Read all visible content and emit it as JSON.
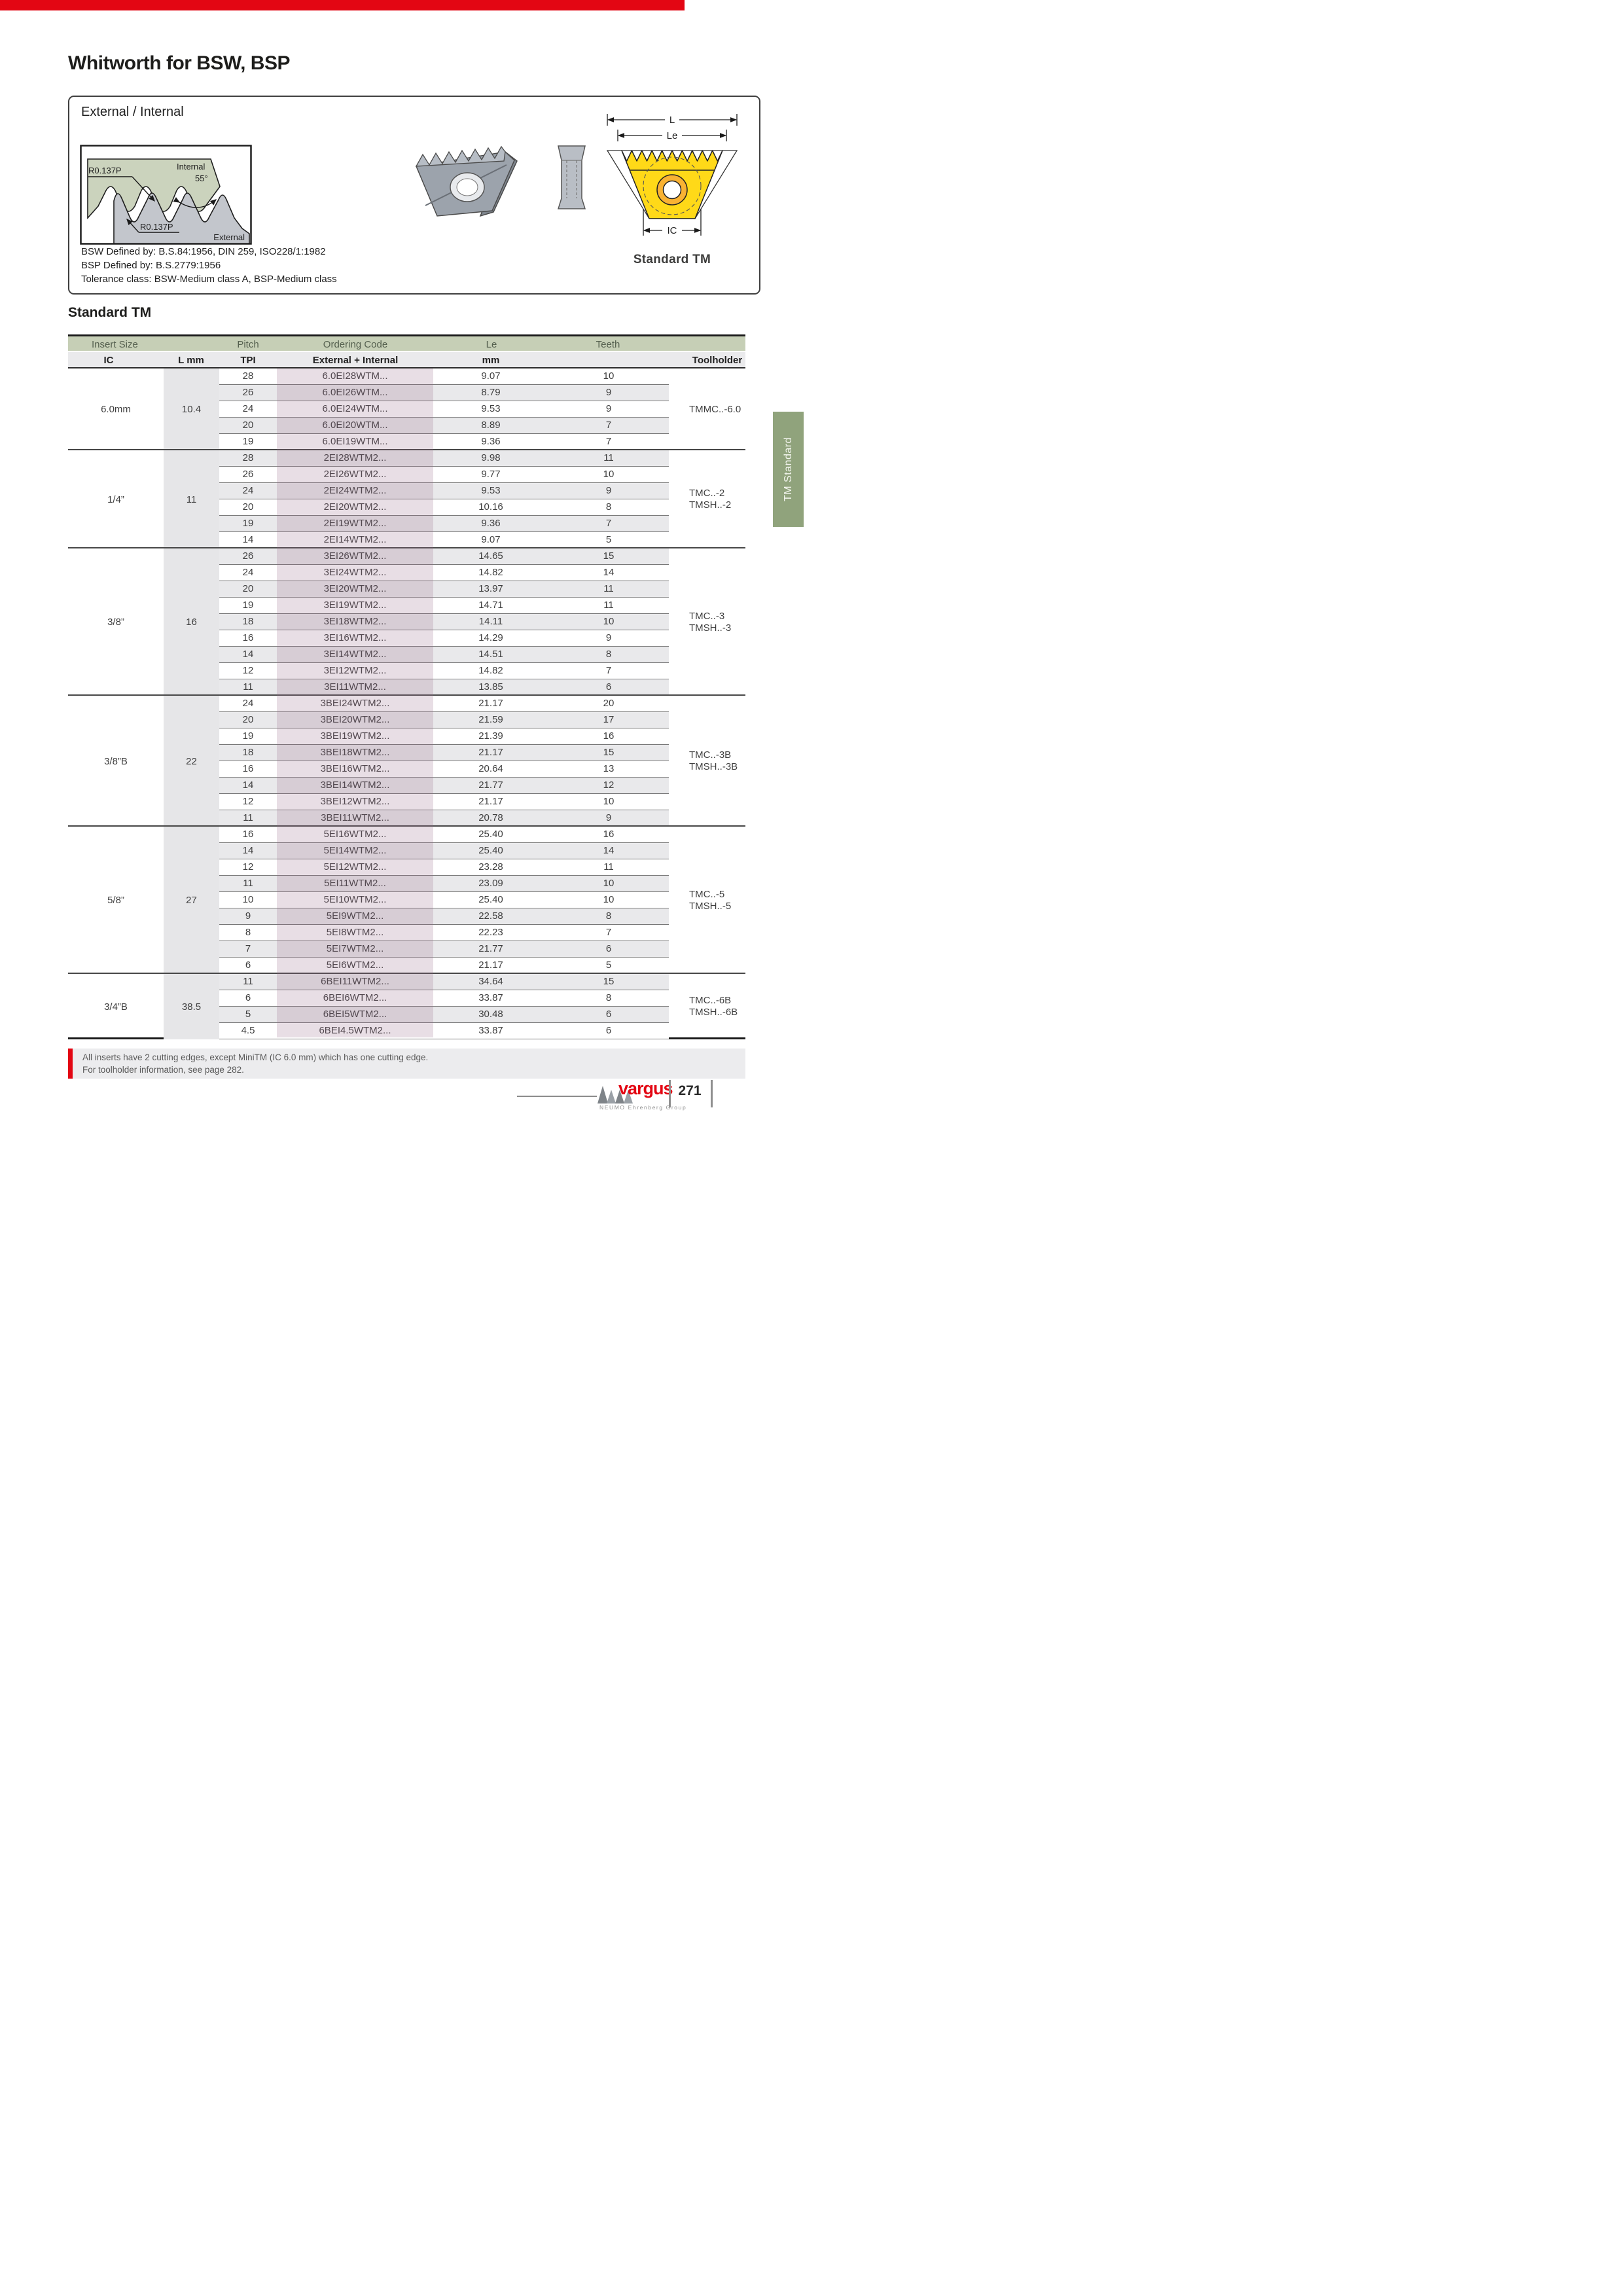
{
  "page": {
    "title": "Whitworth for BSW, BSP",
    "section_heading": "Standard TM",
    "tab_label": "TM Standard",
    "accent_red": "#E30613",
    "header_sage": "#C6CFB6",
    "tab_green": "#90A37C",
    "code_column_mauve": "#CBB8C7"
  },
  "info_box": {
    "subtitle": "External / Internal",
    "thread_diagram": {
      "radius_top_label": "R0.137P",
      "internal_label": "Internal",
      "angle_label": "55°",
      "radius_bottom_label": "R0.137P",
      "external_label": "External"
    },
    "defined_lines": [
      "BSW Defined by: B.S.84:1956, DIN 259, ISO228/1:1982",
      "BSP Defined by: B.S.2779:1956",
      "Tolerance class: BSW-Medium class A, BSP-Medium class"
    ],
    "insert_diagram": {
      "dim_l": "L",
      "dim_le": "Le",
      "dim_ic": "IC",
      "caption": "Standard TM"
    }
  },
  "table": {
    "header_row1": {
      "insert_size": "Insert Size",
      "pitch": "Pitch",
      "ordering_code": "Ordering Code",
      "le": "Le",
      "teeth": "Teeth"
    },
    "header_row2": {
      "ic": "IC",
      "l_mm": "L mm",
      "tpi": "TPI",
      "ext_int": "External + Internal",
      "mm": "mm",
      "toolholder": "Toolholder"
    },
    "groups": [
      {
        "ic": "6.0mm",
        "l": "10.4",
        "toolholders": [
          "TMMC..-6.0"
        ],
        "rows": [
          [
            "28",
            "6.0EI28WTM...",
            "9.07",
            "10"
          ],
          [
            "26",
            "6.0EI26WTM...",
            "8.79",
            "9"
          ],
          [
            "24",
            "6.0EI24WTM...",
            "9.53",
            "9"
          ],
          [
            "20",
            "6.0EI20WTM...",
            "8.89",
            "7"
          ],
          [
            "19",
            "6.0EI19WTM...",
            "9.36",
            "7"
          ]
        ]
      },
      {
        "ic": "1/4”",
        "l": "11",
        "toolholders": [
          "TMC..-2",
          "TMSH..-2"
        ],
        "rows": [
          [
            "28",
            "2EI28WTM2...",
            "9.98",
            "11"
          ],
          [
            "26",
            "2EI26WTM2...",
            "9.77",
            "10"
          ],
          [
            "24",
            "2EI24WTM2...",
            "9.53",
            "9"
          ],
          [
            "20",
            "2EI20WTM2...",
            "10.16",
            "8"
          ],
          [
            "19",
            "2EI19WTM2...",
            "9.36",
            "7"
          ],
          [
            "14",
            "2EI14WTM2...",
            "9.07",
            "5"
          ]
        ]
      },
      {
        "ic": "3/8”",
        "l": "16",
        "toolholders": [
          "TMC..-3",
          "TMSH..-3"
        ],
        "rows": [
          [
            "26",
            "3EI26WTM2...",
            "14.65",
            "15"
          ],
          [
            "24",
            "3EI24WTM2...",
            "14.82",
            "14"
          ],
          [
            "20",
            "3EI20WTM2...",
            "13.97",
            "11"
          ],
          [
            "19",
            "3EI19WTM2...",
            "14.71",
            "11"
          ],
          [
            "18",
            "3EI18WTM2...",
            "14.11",
            "10"
          ],
          [
            "16",
            "3EI16WTM2...",
            "14.29",
            "9"
          ],
          [
            "14",
            "3EI14WTM2...",
            "14.51",
            "8"
          ],
          [
            "12",
            "3EI12WTM2...",
            "14.82",
            "7"
          ],
          [
            "11",
            "3EI11WTM2...",
            "13.85",
            "6"
          ]
        ]
      },
      {
        "ic": "3/8”B",
        "l": "22",
        "toolholders": [
          "TMC..-3B",
          "TMSH..-3B"
        ],
        "rows": [
          [
            "24",
            "3BEI24WTM2...",
            "21.17",
            "20"
          ],
          [
            "20",
            "3BEI20WTM2...",
            "21.59",
            "17"
          ],
          [
            "19",
            "3BEI19WTM2...",
            "21.39",
            "16"
          ],
          [
            "18",
            "3BEI18WTM2...",
            "21.17",
            "15"
          ],
          [
            "16",
            "3BEI16WTM2...",
            "20.64",
            "13"
          ],
          [
            "14",
            "3BEI14WTM2...",
            "21.77",
            "12"
          ],
          [
            "12",
            "3BEI12WTM2...",
            "21.17",
            "10"
          ],
          [
            "11",
            "3BEI11WTM2...",
            "20.78",
            "9"
          ]
        ]
      },
      {
        "ic": "5/8”",
        "l": "27",
        "toolholders": [
          "TMC..-5",
          "TMSH..-5"
        ],
        "rows": [
          [
            "16",
            "5EI16WTM2...",
            "25.40",
            "16"
          ],
          [
            "14",
            "5EI14WTM2...",
            "25.40",
            "14"
          ],
          [
            "12",
            "5EI12WTM2...",
            "23.28",
            "11"
          ],
          [
            "11",
            "5EI11WTM2...",
            "23.09",
            "10"
          ],
          [
            "10",
            "5EI10WTM2...",
            "25.40",
            "10"
          ],
          [
            "9",
            "5EI9WTM2...",
            "22.58",
            "8"
          ],
          [
            "8",
            "5EI8WTM2...",
            "22.23",
            "7"
          ],
          [
            "7",
            "5EI7WTM2...",
            "21.77",
            "6"
          ],
          [
            "6",
            "5EI6WTM2...",
            "21.17",
            "5"
          ]
        ]
      },
      {
        "ic": "3/4”B",
        "l": "38.5",
        "toolholders": [
          "TMC..-6B",
          "TMSH..-6B"
        ],
        "rows": [
          [
            "11",
            "6BEI11WTM2...",
            "34.64",
            "15"
          ],
          [
            "6",
            "6BEI6WTM2...",
            "33.87",
            "8"
          ],
          [
            "5",
            "6BEI5WTM2...",
            "30.48",
            "6"
          ],
          [
            "4.5",
            "6BEI4.5WTM2...",
            "33.87",
            "6"
          ]
        ]
      }
    ]
  },
  "note": {
    "line1": "All inserts have 2 cutting edges, except MiniTM (IC 6.0 mm) which has one cutting edge.",
    "line2": "For toolholder information, see page 282."
  },
  "footer": {
    "brand": "vargus",
    "brand_sub": "NEUMO Ehrenberg Group",
    "page_number": "271"
  }
}
